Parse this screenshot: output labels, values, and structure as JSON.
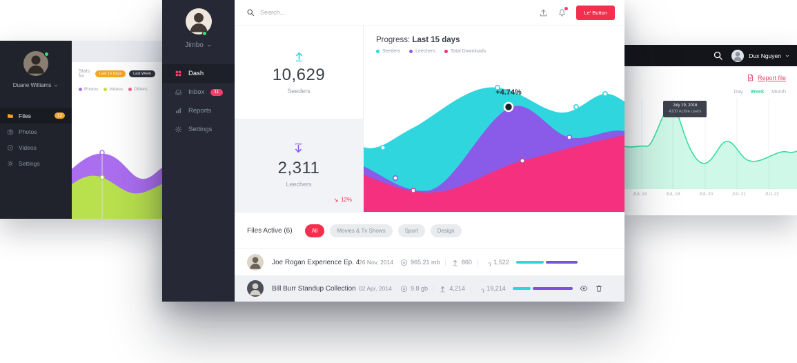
{
  "colors": {
    "accent_red": "#f2304d",
    "cyan": "#2bd6dd",
    "purple": "#7b52e0",
    "pink": "#f5317f",
    "green": "#2fd695",
    "orange": "#f5a623"
  },
  "left_card": {
    "sidebar": {
      "name": "Duane Williams",
      "items": [
        {
          "label": "Files",
          "badge": "12"
        },
        {
          "label": "Photos"
        },
        {
          "label": "Videos"
        },
        {
          "label": "Settings"
        }
      ]
    },
    "panel": {
      "stats_for": "Stats for",
      "ranges": [
        {
          "label": "Last 15 Days",
          "active": true
        },
        {
          "label": "Last Week",
          "active": false
        }
      ],
      "legend": [
        {
          "label": "Photos",
          "color": "#ab6ef0"
        },
        {
          "label": "Videos",
          "color": "#b9e14e"
        },
        {
          "label": "Others",
          "color": "#f06292"
        }
      ]
    }
  },
  "center_card": {
    "sidebar": {
      "name": "Jimbo",
      "items": [
        {
          "label": "Dash",
          "active": true
        },
        {
          "label": "Inbox",
          "badge": "11"
        },
        {
          "label": "Reports"
        },
        {
          "label": "Settings"
        }
      ]
    },
    "topbar": {
      "search_placeholder": "Search....",
      "button_label": "Le' Button"
    },
    "stats": {
      "seeders": {
        "value": "10,629",
        "label": "Seeders"
      },
      "leechers": {
        "value": "2,311",
        "label": "Leechers",
        "delta": "12%"
      }
    },
    "progress": {
      "title": "Progress:",
      "range": "Last 15 days",
      "legend": [
        {
          "label": "Seeders",
          "color": "#2bd6dd"
        },
        {
          "label": "Leechers",
          "color": "#8a5ae8"
        },
        {
          "label": "Total Downloads",
          "color": "#f5317f"
        }
      ],
      "annotation": "+4.74%"
    },
    "files": {
      "title": "Files Active (6)",
      "filters": [
        {
          "label": "All",
          "active": true
        },
        {
          "label": "Movies & Tv Shows"
        },
        {
          "label": "Sport"
        },
        {
          "label": "Design"
        }
      ],
      "rows": [
        {
          "name": "Joe Rogan Experience Ep. 468",
          "date": "26 Nov, 2014",
          "size": "965.21 mb",
          "up": "860",
          "down": "1,522",
          "bar": {
            "cyan": 40,
            "purple": 46
          }
        },
        {
          "name": "Bill Burr Standup Collection",
          "date": "02 Apr, 2014",
          "size": "9.8 gb",
          "up": "4,214",
          "down": "19,214",
          "bar": {
            "cyan": 26,
            "purple": 58
          }
        }
      ]
    }
  },
  "right_card": {
    "header": {
      "name": "Dux Nguyen"
    },
    "report_label": "Report file",
    "tabs": [
      {
        "label": "Day",
        "active": false
      },
      {
        "label": "Week",
        "active": true
      },
      {
        "label": "Month",
        "active": false
      }
    ],
    "tooltip": {
      "date": "July 19, 2016",
      "users": "4100 Active users"
    },
    "x_labels": [
      "JUL 18",
      "JUL 19",
      "JUL 20",
      "JUL 21",
      "JUL 22"
    ]
  }
}
